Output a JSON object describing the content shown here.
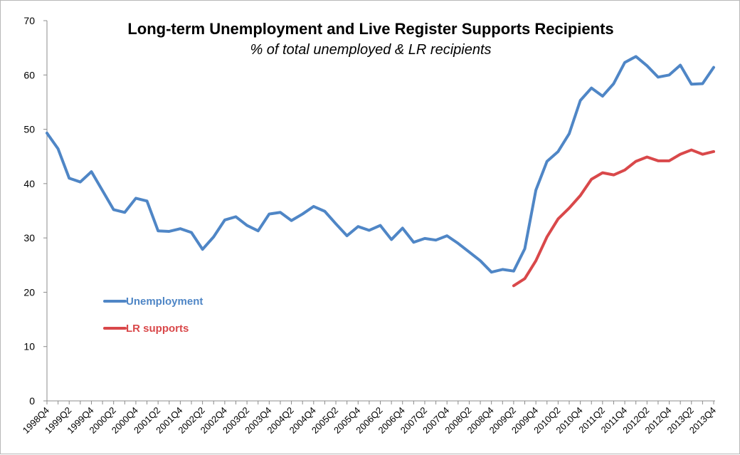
{
  "chart_data": {
    "type": "line",
    "title": "Long-term Unemployment and Live Register Supports Recipients",
    "subtitle": "% of total unemployed & LR recipients",
    "xlabel": "",
    "ylabel": "",
    "ylim": [
      0,
      70
    ],
    "yticks": [
      0,
      10,
      20,
      30,
      40,
      50,
      60,
      70
    ],
    "grid": false,
    "legend_position": "left-middle",
    "categories": [
      "1998Q4",
      "1999Q1",
      "1999Q2",
      "1999Q3",
      "1999Q4",
      "2000Q1",
      "2000Q2",
      "2000Q3",
      "2000Q4",
      "2001Q1",
      "2001Q2",
      "2001Q3",
      "2001Q4",
      "2002Q1",
      "2002Q2",
      "2002Q3",
      "2002Q4",
      "2003Q1",
      "2003Q2",
      "2003Q3",
      "2003Q4",
      "2004Q1",
      "2004Q2",
      "2004Q3",
      "2004Q4",
      "2005Q1",
      "2005Q2",
      "2005Q3",
      "2005Q4",
      "2006Q1",
      "2006Q2",
      "2006Q3",
      "2006Q4",
      "2007Q1",
      "2007Q2",
      "2007Q3",
      "2007Q4",
      "2008Q1",
      "2008Q2",
      "2008Q3",
      "2008Q4",
      "2009Q1",
      "2009Q2",
      "2009Q3",
      "2009Q4",
      "2010Q1",
      "2010Q2",
      "2010Q3",
      "2010Q4",
      "2011Q1",
      "2011Q2",
      "2011Q3",
      "2011Q4",
      "2012Q1",
      "2012Q2",
      "2012Q3",
      "2012Q4",
      "2013Q1",
      "2013Q2",
      "2013Q3",
      "2013Q4"
    ],
    "x_tick_labels": [
      "1998Q4",
      "1999Q2",
      "1999Q4",
      "2000Q2",
      "2000Q4",
      "2001Q2",
      "2001Q4",
      "2002Q2",
      "2002Q4",
      "2003Q2",
      "2003Q4",
      "2004Q2",
      "2004Q4",
      "2005Q2",
      "2005Q4",
      "2006Q2",
      "2006Q4",
      "2007Q2",
      "2007Q4",
      "2008Q2",
      "2008Q4",
      "2009Q2",
      "2009Q4",
      "2010Q2",
      "2010Q4",
      "2011Q2",
      "2011Q4",
      "2012Q2",
      "2012Q4",
      "2013Q2",
      "2013Q4"
    ],
    "series": [
      {
        "name": "Unemployment",
        "color": "#4f86c6",
        "values": [
          49.3,
          46.4,
          41.0,
          40.3,
          42.2,
          38.7,
          35.2,
          34.7,
          37.3,
          36.8,
          31.3,
          31.2,
          31.7,
          31.0,
          27.9,
          30.2,
          33.3,
          33.9,
          32.3,
          31.3,
          34.4,
          34.7,
          33.2,
          34.4,
          35.8,
          34.9,
          32.6,
          30.4,
          32.1,
          31.4,
          32.3,
          29.7,
          31.8,
          29.2,
          29.9,
          29.6,
          30.4,
          29.0,
          27.4,
          25.8,
          23.7,
          24.2,
          23.9,
          28.0,
          38.8,
          44.1,
          45.9,
          49.2,
          55.3,
          57.6,
          56.1,
          58.4,
          62.3,
          63.4,
          61.7,
          59.6,
          60.0,
          61.8,
          58.3,
          58.4,
          61.4
        ]
      },
      {
        "name": "LR supports",
        "color": "#d9484a",
        "values": [
          null,
          null,
          null,
          null,
          null,
          null,
          null,
          null,
          null,
          null,
          null,
          null,
          null,
          null,
          null,
          null,
          null,
          null,
          null,
          null,
          null,
          null,
          null,
          null,
          null,
          null,
          null,
          null,
          null,
          null,
          null,
          null,
          null,
          null,
          null,
          null,
          null,
          null,
          null,
          null,
          null,
          null,
          21.2,
          22.5,
          25.8,
          30.2,
          33.5,
          35.5,
          37.8,
          40.8,
          42.0,
          41.6,
          42.5,
          44.1,
          44.9,
          44.2,
          44.2,
          45.4,
          46.2,
          45.4,
          45.9
        ]
      }
    ]
  }
}
